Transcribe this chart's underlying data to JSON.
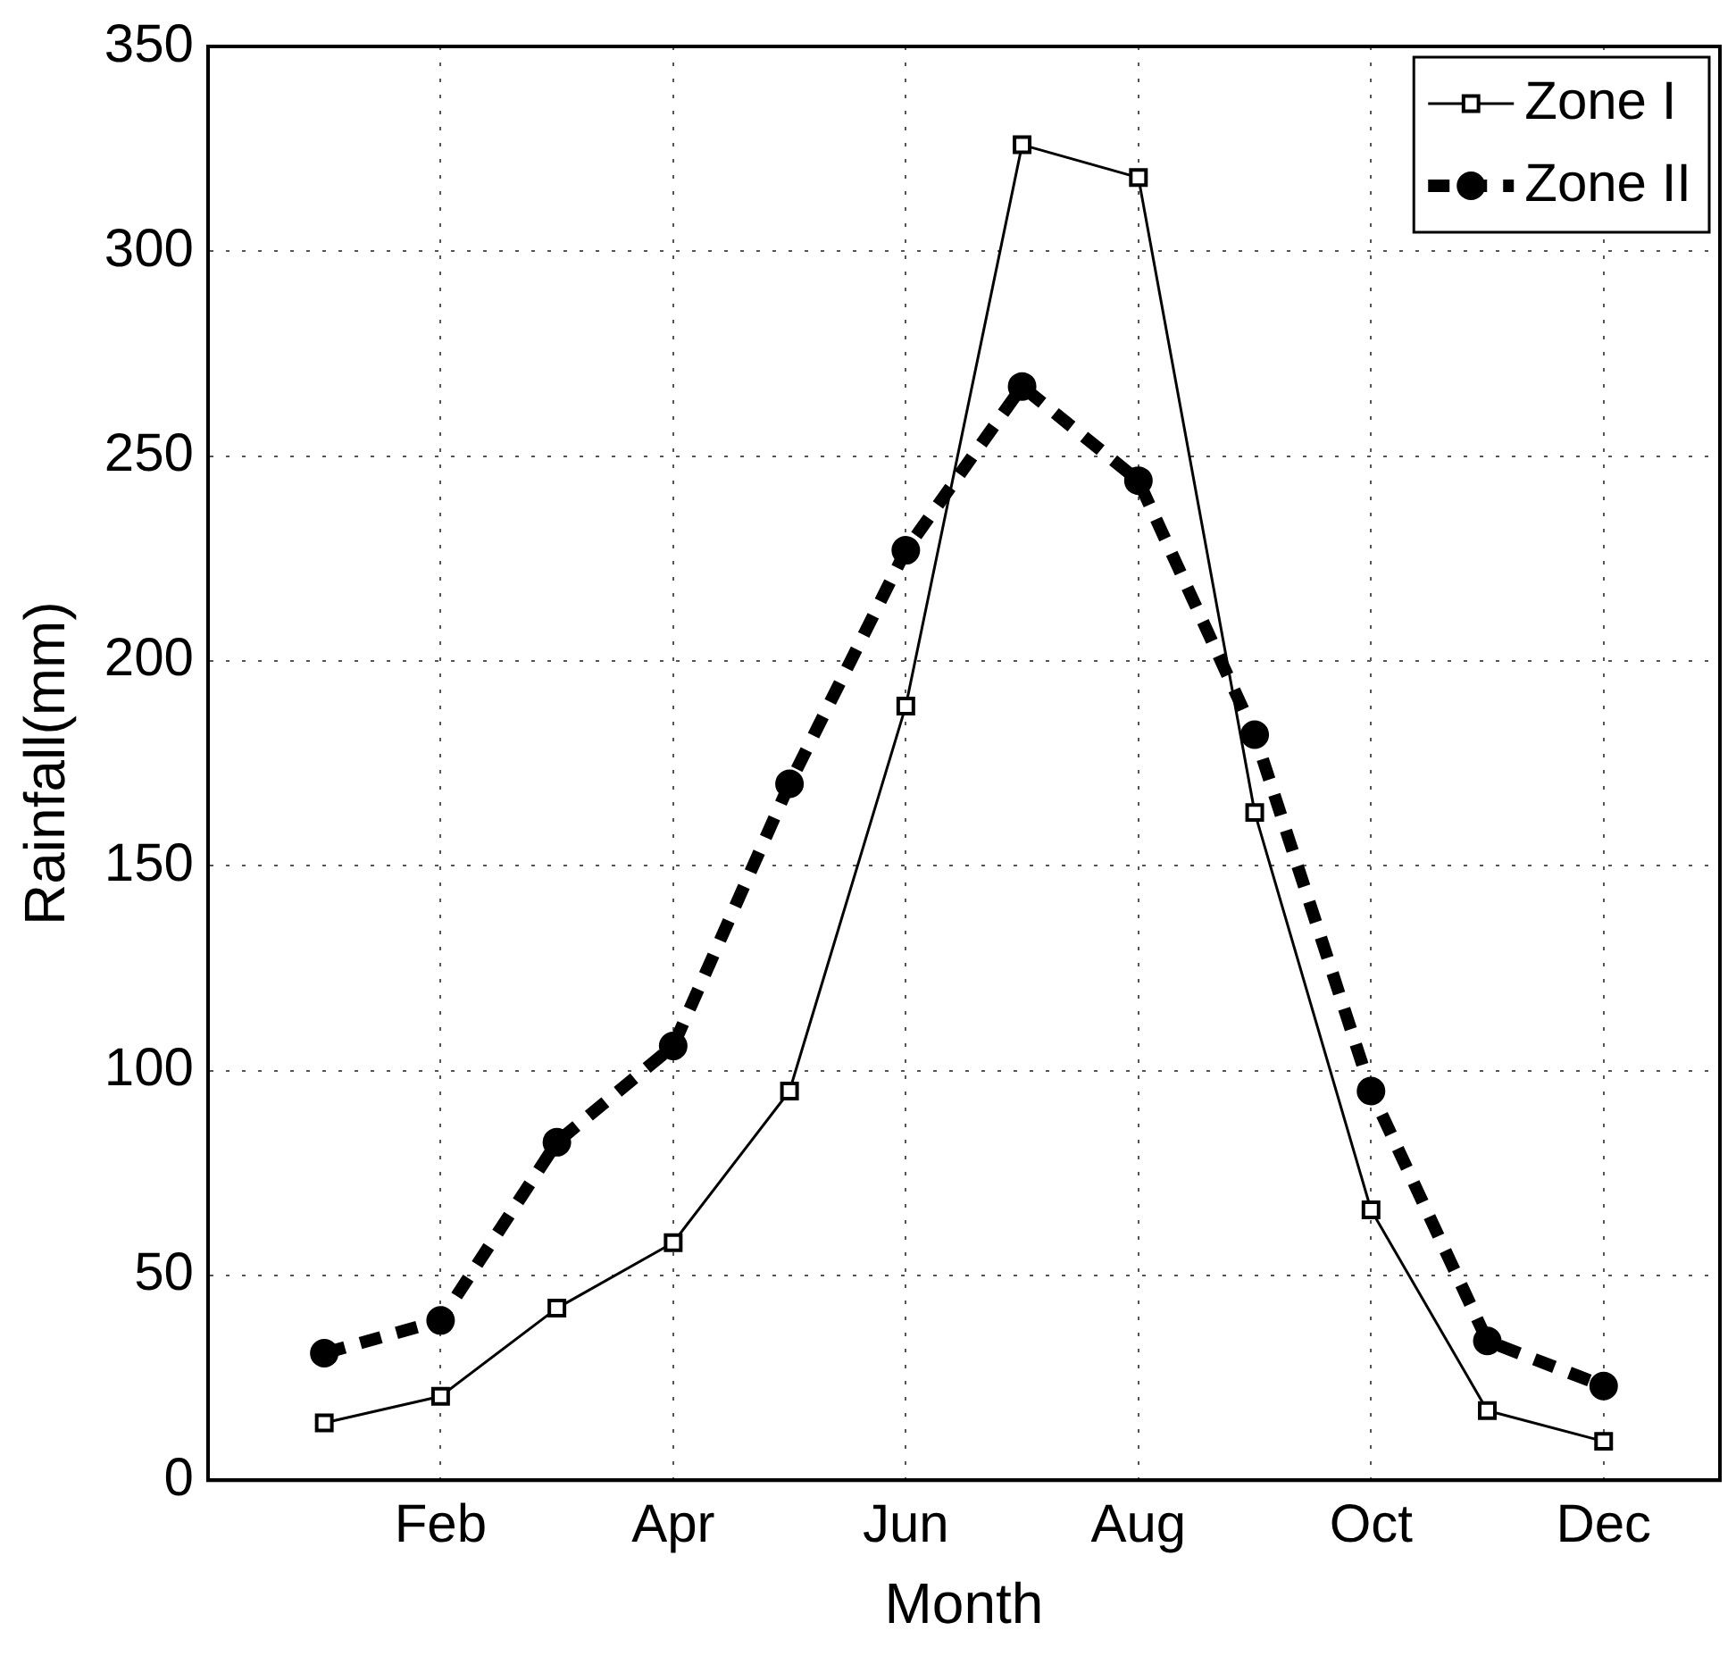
{
  "chart_data": {
    "type": "line",
    "xlabel": "Month",
    "ylabel": "Rainfall(mm)",
    "categories": [
      null,
      "Feb",
      null,
      "Apr",
      null,
      "Jun",
      null,
      "Aug",
      null,
      "Oct",
      null,
      "Dec"
    ],
    "series": [
      {
        "name": "Zone I",
        "color": "#000000",
        "marker": "square",
        "line_style": "solid",
        "values": [
          14,
          20.5,
          42,
          58,
          95,
          189,
          326,
          318,
          163,
          66,
          17,
          9.5
        ]
      },
      {
        "name": "Zone II",
        "color": "#000000",
        "marker": "circle",
        "line_style": "dashed",
        "values": [
          31,
          39,
          82.5,
          106,
          170,
          227,
          267,
          244,
          182,
          95,
          34,
          23
        ]
      }
    ],
    "ylim": [
      0,
      350
    ],
    "yticks": [
      0,
      50,
      100,
      150,
      200,
      250,
      300,
      350
    ],
    "grid": true,
    "legend": "top right"
  }
}
